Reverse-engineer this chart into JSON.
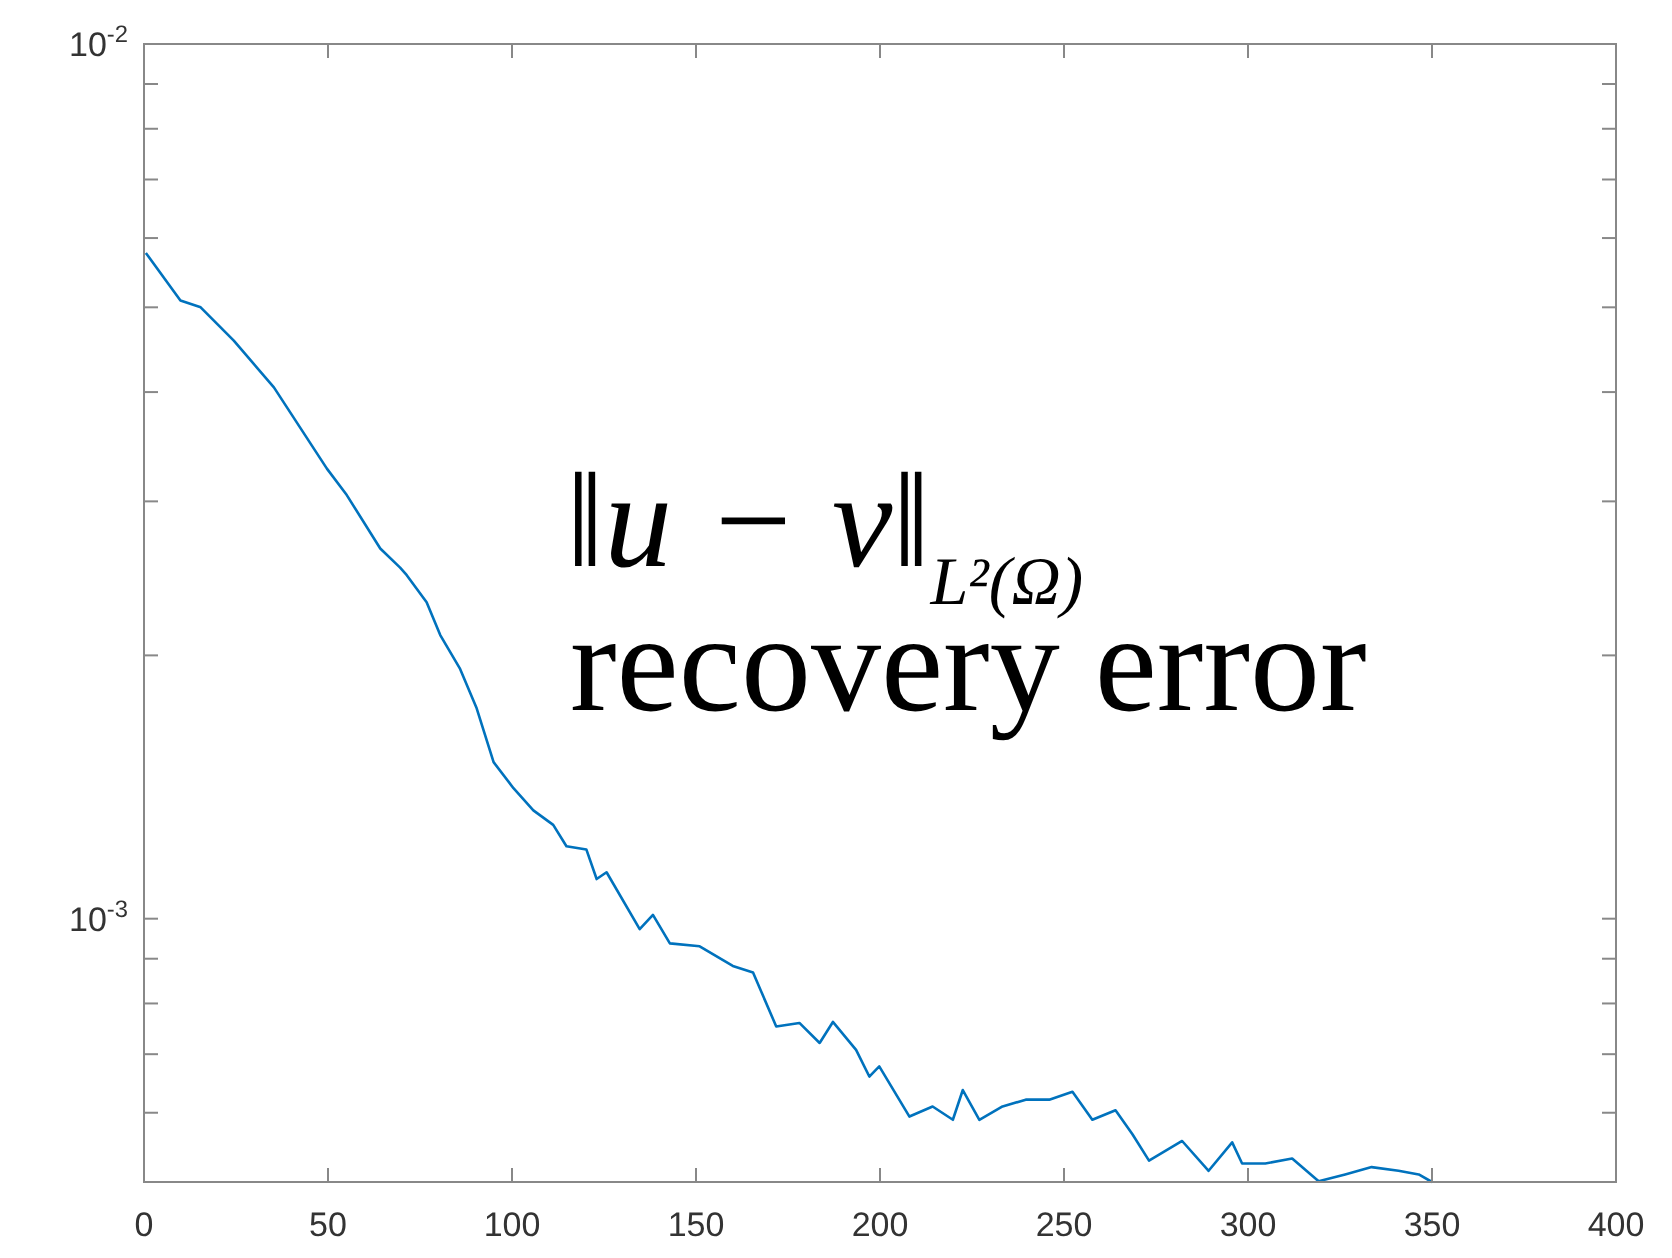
{
  "chart_data": {
    "type": "line",
    "log": "y",
    "xlim": [
      0,
      400
    ],
    "xticks": [
      0,
      50,
      100,
      150,
      200,
      250,
      300,
      350,
      400
    ],
    "ylim": [
      0.0005,
      0.01
    ],
    "yticks": [
      {
        "value": 0.0005,
        "label": null
      },
      {
        "value": 0.0006,
        "label": null
      },
      {
        "value": 0.0007,
        "label": null
      },
      {
        "value": 0.0008,
        "label": null
      },
      {
        "value": 0.0009,
        "label": null
      },
      {
        "value": 0.001,
        "label": "10$^{-3}$"
      },
      {
        "value": 0.002,
        "label": null
      },
      {
        "value": 0.003,
        "label": null
      },
      {
        "value": 0.004,
        "label": null
      },
      {
        "value": 0.005,
        "label": null
      },
      {
        "value": 0.006,
        "label": null
      },
      {
        "value": 0.007,
        "label": null
      },
      {
        "value": 0.008,
        "label": null
      },
      {
        "value": 0.009,
        "label": null
      },
      {
        "value": 0.01,
        "label": "10$^{-2}$"
      }
    ],
    "grid": false,
    "marker": "none",
    "line_style": "solid",
    "annotations": [
      "‖u − v‖$_{L²(Ω)}$",
      "recovery error"
    ],
    "series": [
      {
        "color": "#0072bd",
        "x": [
          0.5,
          9.9,
          15.4,
          24.4,
          35.3,
          49.7,
          55.1,
          64.2,
          69.6,
          71.4,
          76.8,
          80.5,
          85.9,
          90.4,
          95,
          100.4,
          105.8,
          111.2,
          114.8,
          120.2,
          123,
          125.7,
          134.7,
          138.3,
          142.9,
          151,
          160,
          165.5,
          171.8,
          178.1,
          183.6,
          187.2,
          193.5,
          197.1,
          199.8,
          208,
          214.3,
          219.8,
          222.5,
          227,
          233.3,
          239.6,
          246,
          252.3,
          257.7,
          264,
          268.6,
          273.1,
          282.1,
          289.3,
          295.7,
          298.4,
          304.7,
          312,
          319.2,
          326.4,
          333.6,
          340.9,
          346.4,
          350
        ],
        "values": [
          0.00577,
          0.00509,
          0.005,
          0.00458,
          0.00405,
          0.00327,
          0.00305,
          0.00265,
          0.00252,
          0.00247,
          0.0023,
          0.00211,
          0.00193,
          0.00174,
          0.00151,
          0.00141,
          0.00133,
          0.00128,
          0.00121,
          0.0012,
          0.00111,
          0.00113,
          0.000973,
          0.00101,
          0.000937,
          0.00093,
          0.000883,
          0.000868,
          0.000753,
          0.00076,
          0.000721,
          0.000762,
          0.000708,
          0.00066,
          0.000678,
          0.000594,
          0.00061,
          0.000589,
          0.000637,
          0.000589,
          0.00061,
          0.000621,
          0.000621,
          0.000634,
          0.000589,
          0.000604,
          0.000567,
          0.000529,
          0.000557,
          0.000515,
          0.000555,
          0.000525,
          0.000525,
          0.000532,
          0.000501,
          0.00051,
          0.00052,
          0.000515,
          0.00051,
          0.0005
        ]
      }
    ]
  }
}
